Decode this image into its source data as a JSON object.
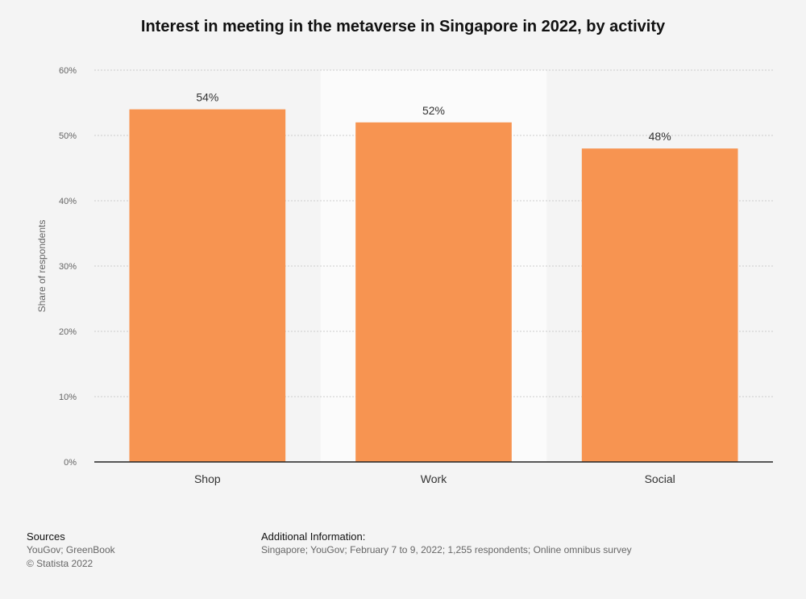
{
  "chart_data": {
    "type": "bar",
    "title": "Interest in meeting in the metaverse in Singapore in 2022, by activity",
    "xlabel": "",
    "ylabel": "Share of respondents",
    "categories": [
      "Shop",
      "Work",
      "Social"
    ],
    "values": [
      54,
      52,
      48
    ],
    "value_labels": [
      "54%",
      "52%",
      "48%"
    ],
    "ylim": [
      0,
      60
    ],
    "yticks": [
      0,
      10,
      20,
      30,
      40,
      50,
      60
    ],
    "ytick_labels": [
      "0%",
      "10%",
      "20%",
      "30%",
      "40%",
      "50%",
      "60%"
    ],
    "grid": true,
    "highlighted_category_index": 1,
    "colors": {
      "bar": "#f79451",
      "highlight_band": "#fbfbfb",
      "grid": "#cccccc",
      "axis": "#222222",
      "tick_text": "#666666",
      "label_text": "#333333"
    }
  },
  "footer": {
    "sources_heading": "Sources",
    "sources_line1": "YouGov; GreenBook",
    "sources_line2": "© Statista 2022",
    "additional_heading": "Additional Information:",
    "additional_text": "Singapore; YouGov; February 7 to 9, 2022; 1,255 respondents; Online omnibus survey"
  }
}
